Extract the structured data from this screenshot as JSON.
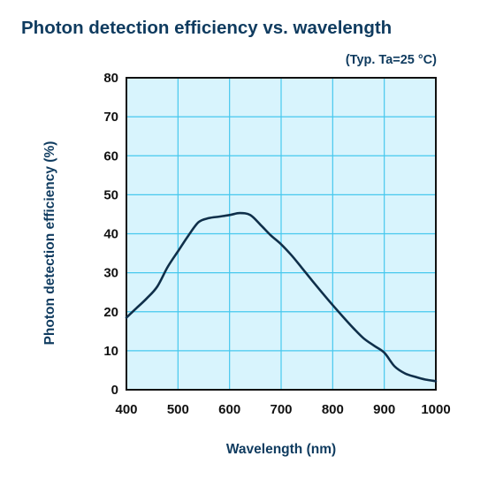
{
  "chart_data": {
    "type": "line",
    "title": "Photon detection efficiency vs. wavelength",
    "subtitle": "(Typ. Ta=25 °C)",
    "xlabel": "Wavelength (nm)",
    "ylabel": "Photon detection efficiency (%)",
    "xlim": [
      400,
      1000
    ],
    "ylim": [
      0,
      80
    ],
    "xticks": [
      400,
      500,
      600,
      700,
      800,
      900,
      1000
    ],
    "yticks": [
      0,
      10,
      20,
      30,
      40,
      50,
      60,
      70,
      80
    ],
    "grid": true,
    "series": [
      {
        "x": [
          400,
          420,
          440,
          460,
          480,
          500,
          520,
          540,
          560,
          580,
          600,
          620,
          640,
          660,
          680,
          700,
          720,
          740,
          760,
          780,
          800,
          820,
          840,
          860,
          880,
          900,
          920,
          940,
          960,
          980,
          1000
        ],
        "values": [
          18.5,
          21,
          23.5,
          26.5,
          31.5,
          35.5,
          39.5,
          43,
          44,
          44.4,
          44.8,
          45.3,
          44.8,
          42.3,
          39.6,
          37.3,
          34.5,
          31.3,
          28,
          24.8,
          21.7,
          18.7,
          15.8,
          13.2,
          11.3,
          9.5,
          6,
          4.2,
          3.3,
          2.6,
          2.2
        ],
        "color": "#0f2f4a"
      }
    ],
    "colors": {
      "plot_background": "#d8f4fd",
      "grid": "#46c8ee",
      "axes": "#111111",
      "text": "#0f3b5f"
    }
  }
}
